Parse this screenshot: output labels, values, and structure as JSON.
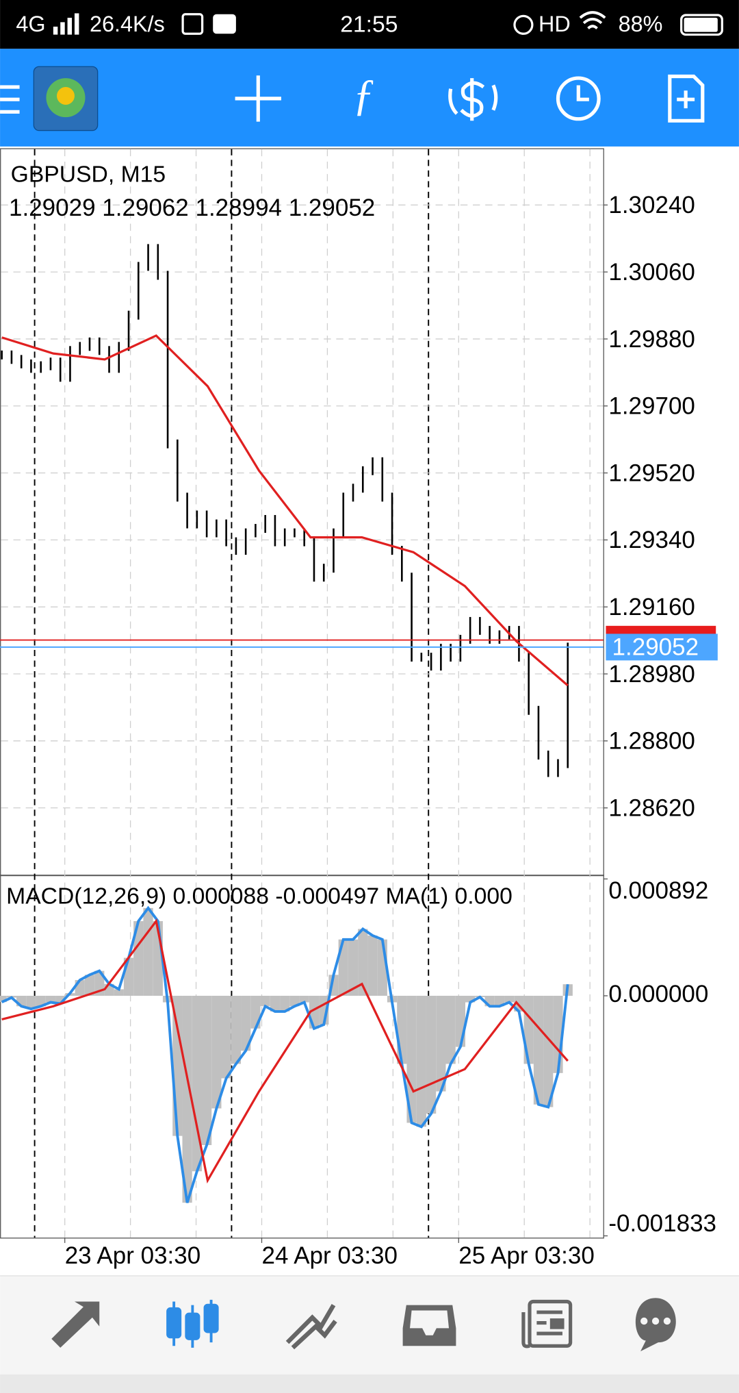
{
  "status_bar": {
    "network": "4G",
    "speed": "26.4K/s",
    "time": "21:55",
    "hd": "HD",
    "battery": "88%"
  },
  "chart": {
    "symbol": "GBPUSD, M15",
    "ohlc": "1.29029 1.29062 1.28994 1.29052",
    "price": {
      "ylim": [
        1.28441,
        1.3039
      ],
      "yticks": [
        {
          "value": 1.3024,
          "label": "1.30240"
        },
        {
          "value": 1.3006,
          "label": "1.30060"
        },
        {
          "value": 1.2988,
          "label": "1.29880"
        },
        {
          "value": 1.297,
          "label": "1.29700"
        },
        {
          "value": 1.2952,
          "label": "1.29520"
        },
        {
          "value": 1.2934,
          "label": "1.29340"
        },
        {
          "value": 1.2916,
          "label": "1.29160"
        },
        {
          "value": 1.2898,
          "label": "1.28980"
        },
        {
          "value": 1.288,
          "label": "1.28800"
        },
        {
          "value": 1.2862,
          "label": "1.28620"
        }
      ],
      "bar_color": "#000000",
      "closes": [
        1.29837,
        1.29825,
        1.29813,
        1.29801,
        1.29808,
        1.29818,
        1.29777,
        1.29849,
        1.2986,
        1.29872,
        1.29849,
        1.29801,
        1.2986,
        1.29944,
        1.30075,
        1.30123,
        1.30051,
        1.29598,
        1.29455,
        1.29383,
        1.29407,
        1.29359,
        1.29383,
        1.29335,
        1.29312,
        1.29359,
        1.29371,
        1.29395,
        1.29335,
        1.29359,
        1.29359,
        1.29335,
        1.2924,
        1.29264,
        1.29359,
        1.29455,
        1.29479,
        1.29526,
        1.2955,
        1.29455,
        1.29312,
        1.2924,
        1.29025,
        1.29025,
        1.29001,
        1.29049,
        1.29025,
        1.29073,
        1.29121,
        1.29097,
        1.29073,
        1.29085,
        1.29097,
        1.29025,
        1.28882,
        1.28762,
        1.28715,
        1.28739,
        1.29052
      ],
      "ma_color": "#e02020",
      "ma": [
        1.29884,
        1.29841,
        1.29825,
        1.29889,
        1.29753,
        1.29526,
        1.29347,
        1.29347,
        1.29307,
        1.29216,
        1.29068,
        1.28949
      ],
      "bid": 1.29052,
      "ask": 1.29071
    },
    "macd": {
      "label": "MACD(12,26,9) 0.000088 -0.000497 MA(1) 0.000",
      "ylim": [
        -0.001833,
        0.000892
      ],
      "yticks": [
        {
          "value": 0.000892,
          "label": "0.000892"
        },
        {
          "value": 0,
          "label": "0.000000"
        },
        {
          "value": -0.001833,
          "label": "-0.001833"
        }
      ],
      "histogram": [
        -4.8e-05,
        -1.4e-05,
        -8e-05,
        -0.0001,
        -8e-05,
        -5e-05,
        -6e-05,
        2e-05,
        0.00012,
        0.00016,
        0.00019,
        9e-05,
        5e-05,
        0.00029,
        0.00057,
        0.00067,
        0.00057,
        -5e-05,
        -0.00107,
        -0.00158,
        -0.00134,
        -0.00114,
        -0.00086,
        -0.00063,
        -0.00052,
        -0.00042,
        -0.00025,
        -8e-05,
        -0.00012,
        -0.00012,
        -8e-05,
        -5e-05,
        -0.00025,
        -0.00022,
        0.00016,
        0.00043,
        0.00043,
        0.00051,
        0.00046,
        0.00043,
        -5e-05,
        -0.00052,
        -0.00097,
        -0.001,
        -0.0009,
        -0.00073,
        -0.00052,
        -0.00039,
        -5e-05,
        -1e-05,
        -8e-05,
        -8e-05,
        -5e-05,
        -0.00012,
        -0.00052,
        -0.00083,
        -0.00085,
        -0.00059,
        8.8e-05
      ],
      "histogram_color": "#c0c0c0",
      "line_color": "#2d8ce6",
      "signal_color": "#e02020",
      "signal": [
        -0.00018,
        -8e-05,
        5e-05,
        0.00057,
        -0.00141,
        -0.00073,
        -0.00012,
        9e-05,
        -0.00073,
        -0.00056,
        -5e-05,
        -0.000497
      ]
    },
    "xtick_labels": [
      "23 Apr 03:30",
      "24 Apr 03:30",
      "25 Apr 03:30"
    ]
  }
}
